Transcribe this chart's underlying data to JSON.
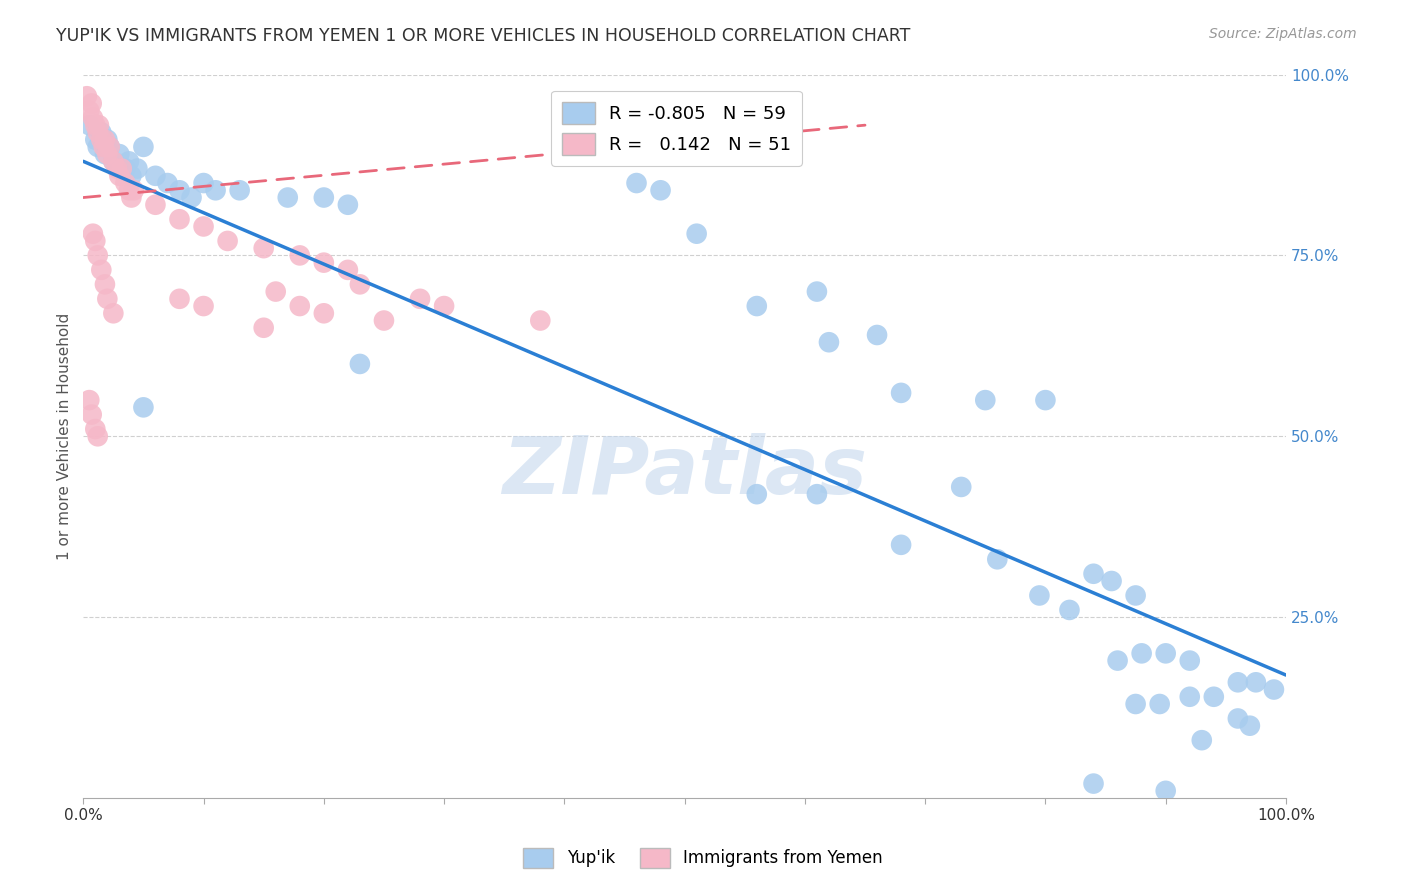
{
  "title": "YUP'IK VS IMMIGRANTS FROM YEMEN 1 OR MORE VEHICLES IN HOUSEHOLD CORRELATION CHART",
  "source": "Source: ZipAtlas.com",
  "ylabel": "1 or more Vehicles in Household",
  "legend_blue_r": "-0.805",
  "legend_blue_n": "59",
  "legend_pink_r": "0.142",
  "legend_pink_n": "51",
  "watermark": "ZIPatlas",
  "blue_scatter": [
    [
      0.005,
      0.93
    ],
    [
      0.01,
      0.91
    ],
    [
      0.012,
      0.9
    ],
    [
      0.015,
      0.92
    ],
    [
      0.018,
      0.89
    ],
    [
      0.02,
      0.91
    ],
    [
      0.022,
      0.9
    ],
    [
      0.025,
      0.88
    ],
    [
      0.03,
      0.89
    ],
    [
      0.035,
      0.87
    ],
    [
      0.038,
      0.88
    ],
    [
      0.04,
      0.86
    ],
    [
      0.045,
      0.87
    ],
    [
      0.05,
      0.9
    ],
    [
      0.06,
      0.86
    ],
    [
      0.07,
      0.85
    ],
    [
      0.08,
      0.84
    ],
    [
      0.09,
      0.83
    ],
    [
      0.1,
      0.85
    ],
    [
      0.11,
      0.84
    ],
    [
      0.13,
      0.84
    ],
    [
      0.17,
      0.83
    ],
    [
      0.2,
      0.83
    ],
    [
      0.22,
      0.82
    ],
    [
      0.05,
      0.54
    ],
    [
      0.23,
      0.6
    ],
    [
      0.46,
      0.85
    ],
    [
      0.48,
      0.84
    ],
    [
      0.51,
      0.78
    ],
    [
      0.56,
      0.68
    ],
    [
      0.61,
      0.7
    ],
    [
      0.62,
      0.63
    ],
    [
      0.66,
      0.64
    ],
    [
      0.56,
      0.42
    ],
    [
      0.61,
      0.42
    ],
    [
      0.68,
      0.35
    ],
    [
      0.68,
      0.56
    ],
    [
      0.73,
      0.43
    ],
    [
      0.75,
      0.55
    ],
    [
      0.8,
      0.55
    ],
    [
      0.76,
      0.33
    ],
    [
      0.795,
      0.28
    ],
    [
      0.82,
      0.26
    ],
    [
      0.84,
      0.31
    ],
    [
      0.855,
      0.3
    ],
    [
      0.875,
      0.28
    ],
    [
      0.86,
      0.19
    ],
    [
      0.88,
      0.2
    ],
    [
      0.9,
      0.2
    ],
    [
      0.92,
      0.19
    ],
    [
      0.875,
      0.13
    ],
    [
      0.895,
      0.13
    ],
    [
      0.92,
      0.14
    ],
    [
      0.94,
      0.14
    ],
    [
      0.96,
      0.16
    ],
    [
      0.975,
      0.16
    ],
    [
      0.96,
      0.11
    ],
    [
      0.97,
      0.1
    ],
    [
      0.99,
      0.15
    ],
    [
      0.84,
      0.02
    ],
    [
      0.9,
      0.01
    ],
    [
      0.93,
      0.08
    ]
  ],
  "pink_scatter": [
    [
      0.003,
      0.97
    ],
    [
      0.005,
      0.95
    ],
    [
      0.007,
      0.96
    ],
    [
      0.008,
      0.94
    ],
    [
      0.01,
      0.93
    ],
    [
      0.012,
      0.92
    ],
    [
      0.013,
      0.93
    ],
    [
      0.015,
      0.91
    ],
    [
      0.017,
      0.9
    ],
    [
      0.018,
      0.91
    ],
    [
      0.02,
      0.89
    ],
    [
      0.022,
      0.9
    ],
    [
      0.025,
      0.88
    ],
    [
      0.028,
      0.87
    ],
    [
      0.03,
      0.86
    ],
    [
      0.032,
      0.87
    ],
    [
      0.035,
      0.85
    ],
    [
      0.038,
      0.84
    ],
    [
      0.04,
      0.83
    ],
    [
      0.042,
      0.84
    ],
    [
      0.008,
      0.78
    ],
    [
      0.01,
      0.77
    ],
    [
      0.012,
      0.75
    ],
    [
      0.015,
      0.73
    ],
    [
      0.018,
      0.71
    ],
    [
      0.02,
      0.69
    ],
    [
      0.025,
      0.67
    ],
    [
      0.005,
      0.55
    ],
    [
      0.007,
      0.53
    ],
    [
      0.01,
      0.51
    ],
    [
      0.012,
      0.5
    ],
    [
      0.06,
      0.82
    ],
    [
      0.08,
      0.8
    ],
    [
      0.1,
      0.79
    ],
    [
      0.12,
      0.77
    ],
    [
      0.15,
      0.76
    ],
    [
      0.18,
      0.75
    ],
    [
      0.2,
      0.74
    ],
    [
      0.08,
      0.69
    ],
    [
      0.1,
      0.68
    ],
    [
      0.15,
      0.65
    ],
    [
      0.23,
      0.71
    ],
    [
      0.28,
      0.69
    ],
    [
      0.16,
      0.7
    ],
    [
      0.18,
      0.68
    ],
    [
      0.2,
      0.67
    ],
    [
      0.22,
      0.73
    ],
    [
      0.25,
      0.66
    ],
    [
      0.3,
      0.68
    ],
    [
      0.38,
      0.66
    ]
  ],
  "blue_color": "#a8ccee",
  "pink_color": "#f5b8c8",
  "blue_line_color": "#2b7fd4",
  "pink_line_color": "#e8687a",
  "background_color": "#ffffff",
  "grid_color": "#d0d0d0",
  "title_color": "#333333",
  "watermark_color": "#c5d8ee",
  "xlim": [
    0.0,
    1.0
  ],
  "ylim": [
    0.0,
    1.0
  ],
  "blue_line_x": [
    0.0,
    1.0
  ],
  "blue_line_y": [
    0.88,
    0.17
  ],
  "pink_line_x": [
    0.0,
    0.65
  ],
  "pink_line_y": [
    0.83,
    0.93
  ]
}
